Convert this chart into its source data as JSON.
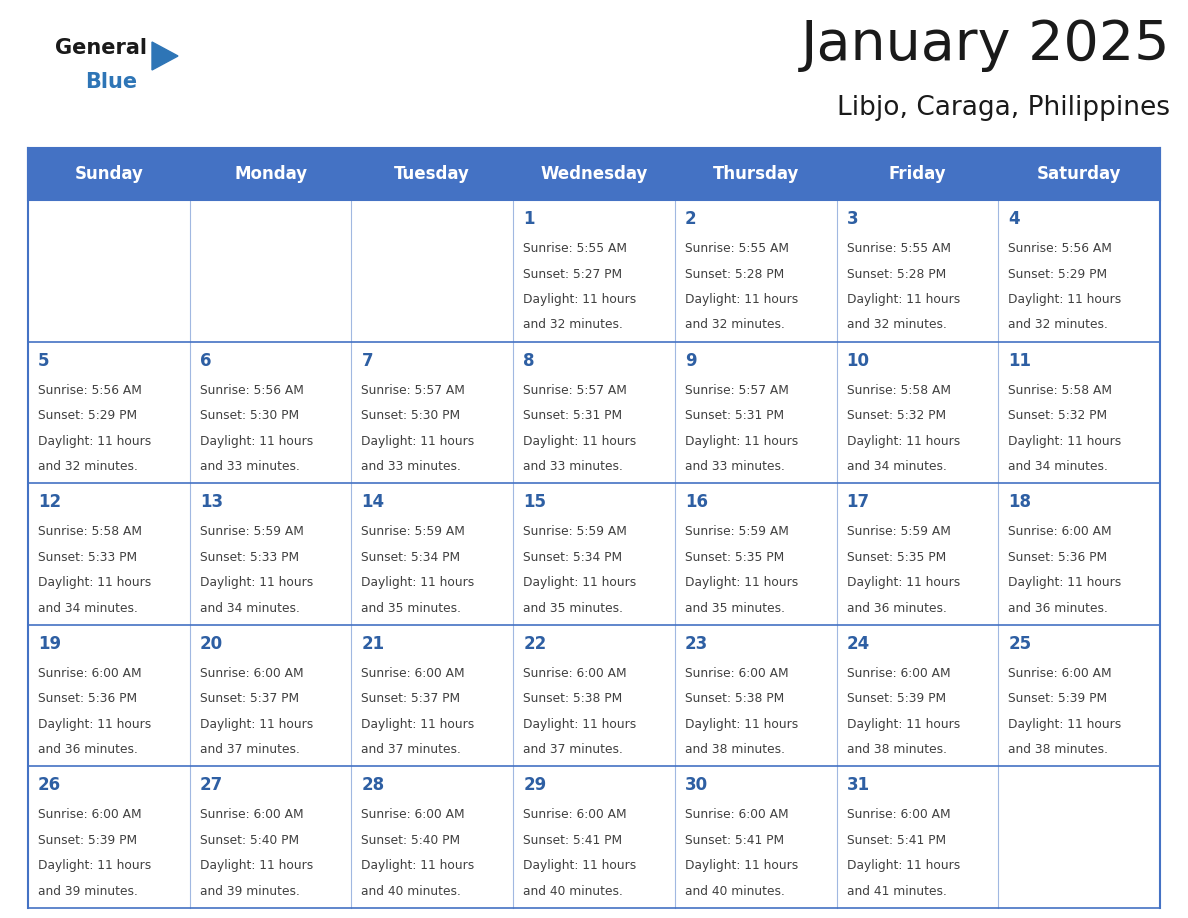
{
  "title": "January 2025",
  "subtitle": "Libjo, Caraga, Philippines",
  "days_of_week": [
    "Sunday",
    "Monday",
    "Tuesday",
    "Wednesday",
    "Thursday",
    "Friday",
    "Saturday"
  ],
  "header_bg": "#4472C4",
  "header_text": "#FFFFFF",
  "cell_bg": "#FFFFFF",
  "border_color": "#4472C4",
  "day_num_color": "#2E5FA3",
  "text_color": "#404040",
  "title_color": "#1a1a1a",
  "subtitle_color": "#1a1a1a",
  "logo_general_color": "#1a1a1a",
  "logo_blue_color": "#2E75B6",
  "calendar_data": [
    [
      {
        "day": "",
        "sunrise": "",
        "sunset": "",
        "daylight_h": "",
        "daylight_m": ""
      },
      {
        "day": "",
        "sunrise": "",
        "sunset": "",
        "daylight_h": "",
        "daylight_m": ""
      },
      {
        "day": "",
        "sunrise": "",
        "sunset": "",
        "daylight_h": "",
        "daylight_m": ""
      },
      {
        "day": "1",
        "sunrise": "5:55 AM",
        "sunset": "5:27 PM",
        "daylight_h": "11",
        "daylight_m": "32"
      },
      {
        "day": "2",
        "sunrise": "5:55 AM",
        "sunset": "5:28 PM",
        "daylight_h": "11",
        "daylight_m": "32"
      },
      {
        "day": "3",
        "sunrise": "5:55 AM",
        "sunset": "5:28 PM",
        "daylight_h": "11",
        "daylight_m": "32"
      },
      {
        "day": "4",
        "sunrise": "5:56 AM",
        "sunset": "5:29 PM",
        "daylight_h": "11",
        "daylight_m": "32"
      }
    ],
    [
      {
        "day": "5",
        "sunrise": "5:56 AM",
        "sunset": "5:29 PM",
        "daylight_h": "11",
        "daylight_m": "32"
      },
      {
        "day": "6",
        "sunrise": "5:56 AM",
        "sunset": "5:30 PM",
        "daylight_h": "11",
        "daylight_m": "33"
      },
      {
        "day": "7",
        "sunrise": "5:57 AM",
        "sunset": "5:30 PM",
        "daylight_h": "11",
        "daylight_m": "33"
      },
      {
        "day": "8",
        "sunrise": "5:57 AM",
        "sunset": "5:31 PM",
        "daylight_h": "11",
        "daylight_m": "33"
      },
      {
        "day": "9",
        "sunrise": "5:57 AM",
        "sunset": "5:31 PM",
        "daylight_h": "11",
        "daylight_m": "33"
      },
      {
        "day": "10",
        "sunrise": "5:58 AM",
        "sunset": "5:32 PM",
        "daylight_h": "11",
        "daylight_m": "34"
      },
      {
        "day": "11",
        "sunrise": "5:58 AM",
        "sunset": "5:32 PM",
        "daylight_h": "11",
        "daylight_m": "34"
      }
    ],
    [
      {
        "day": "12",
        "sunrise": "5:58 AM",
        "sunset": "5:33 PM",
        "daylight_h": "11",
        "daylight_m": "34"
      },
      {
        "day": "13",
        "sunrise": "5:59 AM",
        "sunset": "5:33 PM",
        "daylight_h": "11",
        "daylight_m": "34"
      },
      {
        "day": "14",
        "sunrise": "5:59 AM",
        "sunset": "5:34 PM",
        "daylight_h": "11",
        "daylight_m": "35"
      },
      {
        "day": "15",
        "sunrise": "5:59 AM",
        "sunset": "5:34 PM",
        "daylight_h": "11",
        "daylight_m": "35"
      },
      {
        "day": "16",
        "sunrise": "5:59 AM",
        "sunset": "5:35 PM",
        "daylight_h": "11",
        "daylight_m": "35"
      },
      {
        "day": "17",
        "sunrise": "5:59 AM",
        "sunset": "5:35 PM",
        "daylight_h": "11",
        "daylight_m": "36"
      },
      {
        "day": "18",
        "sunrise": "6:00 AM",
        "sunset": "5:36 PM",
        "daylight_h": "11",
        "daylight_m": "36"
      }
    ],
    [
      {
        "day": "19",
        "sunrise": "6:00 AM",
        "sunset": "5:36 PM",
        "daylight_h": "11",
        "daylight_m": "36"
      },
      {
        "day": "20",
        "sunrise": "6:00 AM",
        "sunset": "5:37 PM",
        "daylight_h": "11",
        "daylight_m": "37"
      },
      {
        "day": "21",
        "sunrise": "6:00 AM",
        "sunset": "5:37 PM",
        "daylight_h": "11",
        "daylight_m": "37"
      },
      {
        "day": "22",
        "sunrise": "6:00 AM",
        "sunset": "5:38 PM",
        "daylight_h": "11",
        "daylight_m": "37"
      },
      {
        "day": "23",
        "sunrise": "6:00 AM",
        "sunset": "5:38 PM",
        "daylight_h": "11",
        "daylight_m": "38"
      },
      {
        "day": "24",
        "sunrise": "6:00 AM",
        "sunset": "5:39 PM",
        "daylight_h": "11",
        "daylight_m": "38"
      },
      {
        "day": "25",
        "sunrise": "6:00 AM",
        "sunset": "5:39 PM",
        "daylight_h": "11",
        "daylight_m": "38"
      }
    ],
    [
      {
        "day": "26",
        "sunrise": "6:00 AM",
        "sunset": "5:39 PM",
        "daylight_h": "11",
        "daylight_m": "39"
      },
      {
        "day": "27",
        "sunrise": "6:00 AM",
        "sunset": "5:40 PM",
        "daylight_h": "11",
        "daylight_m": "39"
      },
      {
        "day": "28",
        "sunrise": "6:00 AM",
        "sunset": "5:40 PM",
        "daylight_h": "11",
        "daylight_m": "40"
      },
      {
        "day": "29",
        "sunrise": "6:00 AM",
        "sunset": "5:41 PM",
        "daylight_h": "11",
        "daylight_m": "40"
      },
      {
        "day": "30",
        "sunrise": "6:00 AM",
        "sunset": "5:41 PM",
        "daylight_h": "11",
        "daylight_m": "40"
      },
      {
        "day": "31",
        "sunrise": "6:00 AM",
        "sunset": "5:41 PM",
        "daylight_h": "11",
        "daylight_m": "41"
      },
      {
        "day": "",
        "sunrise": "",
        "sunset": "",
        "daylight_h": "",
        "daylight_m": ""
      }
    ]
  ],
  "fig_width": 11.88,
  "fig_height": 9.18,
  "dpi": 100
}
